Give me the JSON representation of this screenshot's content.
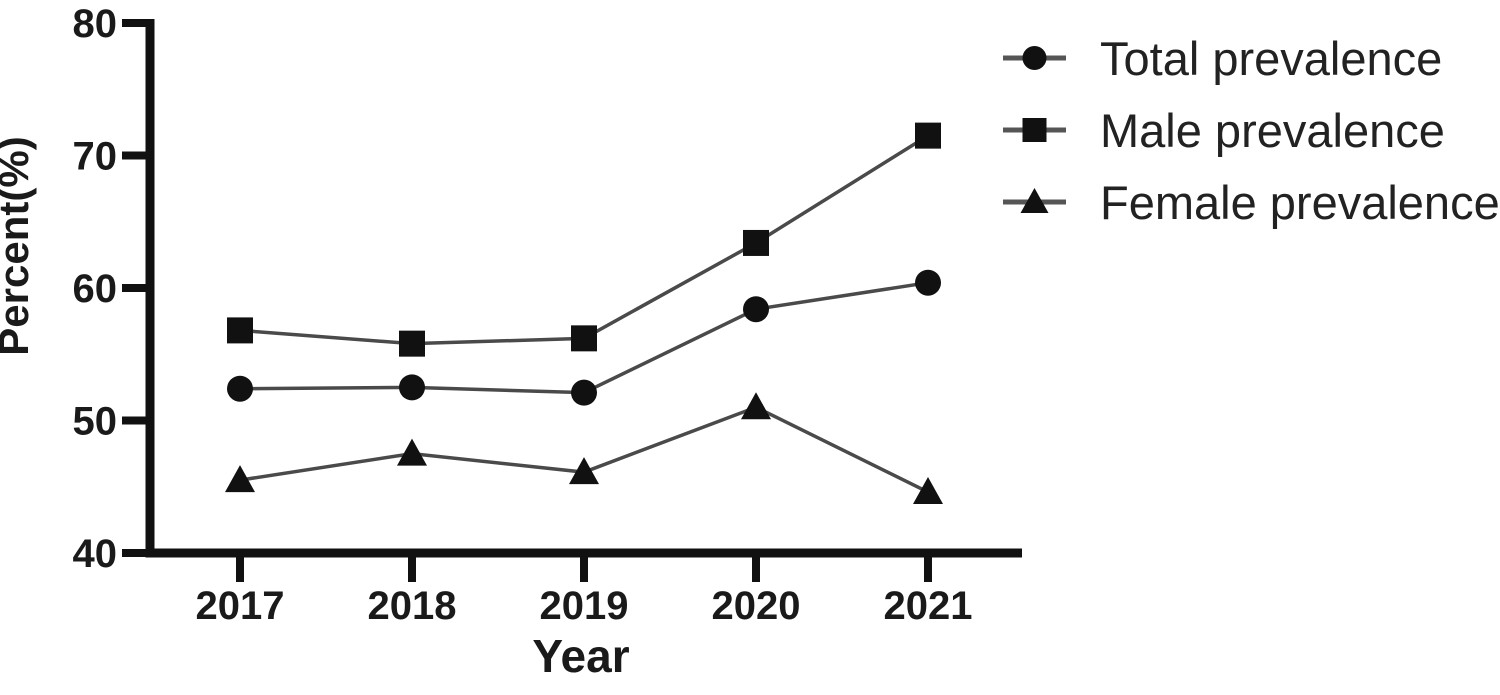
{
  "figure": {
    "background": "#ffffff",
    "description": "Line chart of prevalence percent by year with total, male and female series"
  },
  "colors": {
    "axis": "#111111",
    "tick_text": "#1a1a1a",
    "series_line": "#4a4a4a",
    "marker_fill": "#111111",
    "legend_line": "#555555",
    "legend_text": "#222222"
  },
  "chart_data": {
    "type": "line",
    "title": "",
    "xlabel": "Year",
    "ylabel": "Percent(%)",
    "x": [
      2017,
      2018,
      2019,
      2020,
      2021
    ],
    "x_tick_labels": [
      "2017",
      "2018",
      "2019",
      "2020",
      "2021"
    ],
    "ylim": [
      40,
      80
    ],
    "yticks": [
      40,
      50,
      60,
      70,
      80
    ],
    "ytick_labels": [
      "40",
      "50",
      "60",
      "70",
      "80"
    ],
    "grid": false,
    "legend_position": "top-right",
    "series": [
      {
        "name": "Total prevalence",
        "marker": "circle",
        "values": [
          52.4,
          52.5,
          52.1,
          58.4,
          60.4
        ]
      },
      {
        "name": "Male prevalence",
        "marker": "square",
        "values": [
          56.8,
          55.8,
          56.2,
          63.4,
          71.5
        ]
      },
      {
        "name": "Female prevalence",
        "marker": "triangle",
        "values": [
          45.5,
          47.5,
          46.1,
          51.0,
          44.6
        ]
      }
    ]
  }
}
